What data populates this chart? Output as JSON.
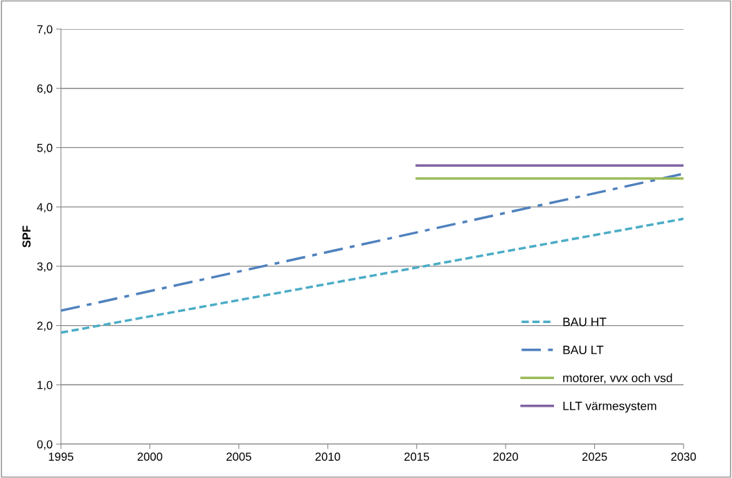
{
  "chart_data": {
    "type": "line",
    "ylabel": "SPF",
    "xlim": [
      1995,
      2030
    ],
    "xticks": [
      1995,
      2000,
      2005,
      2010,
      2015,
      2020,
      2025,
      2030
    ],
    "ylim": [
      0,
      7
    ],
    "yticks": [
      {
        "value": 0,
        "label": "0,0"
      },
      {
        "value": 1,
        "label": "1,0"
      },
      {
        "value": 2,
        "label": "2,0"
      },
      {
        "value": 3,
        "label": "3,0"
      },
      {
        "value": 4,
        "label": "4,0"
      },
      {
        "value": 5,
        "label": "5,0"
      },
      {
        "value": 6,
        "label": "6,0"
      },
      {
        "value": 7,
        "label": "7,0"
      }
    ],
    "grid": "y",
    "legend": "right",
    "marker": "none",
    "series": [
      {
        "name": "BAU HT",
        "color": "#4bacc6",
        "line_style": "dashed",
        "x": [
          1995,
          2030
        ],
        "values": [
          1.88,
          3.8
        ]
      },
      {
        "name": "BAU LT",
        "color": "#4f81bd",
        "line_style": "dashdot",
        "x": [
          1995,
          2030
        ],
        "values": [
          2.25,
          4.56
        ]
      },
      {
        "name": "motorer, vvx och vsd",
        "color": "#9bbb59",
        "line_style": "solid",
        "x": [
          2015,
          2030
        ],
        "values": [
          4.48,
          4.48
        ]
      },
      {
        "name": "LLT värmesystem",
        "color": "#8064a2",
        "line_style": "solid",
        "x": [
          2015,
          2030
        ],
        "values": [
          4.7,
          4.7
        ]
      }
    ]
  }
}
